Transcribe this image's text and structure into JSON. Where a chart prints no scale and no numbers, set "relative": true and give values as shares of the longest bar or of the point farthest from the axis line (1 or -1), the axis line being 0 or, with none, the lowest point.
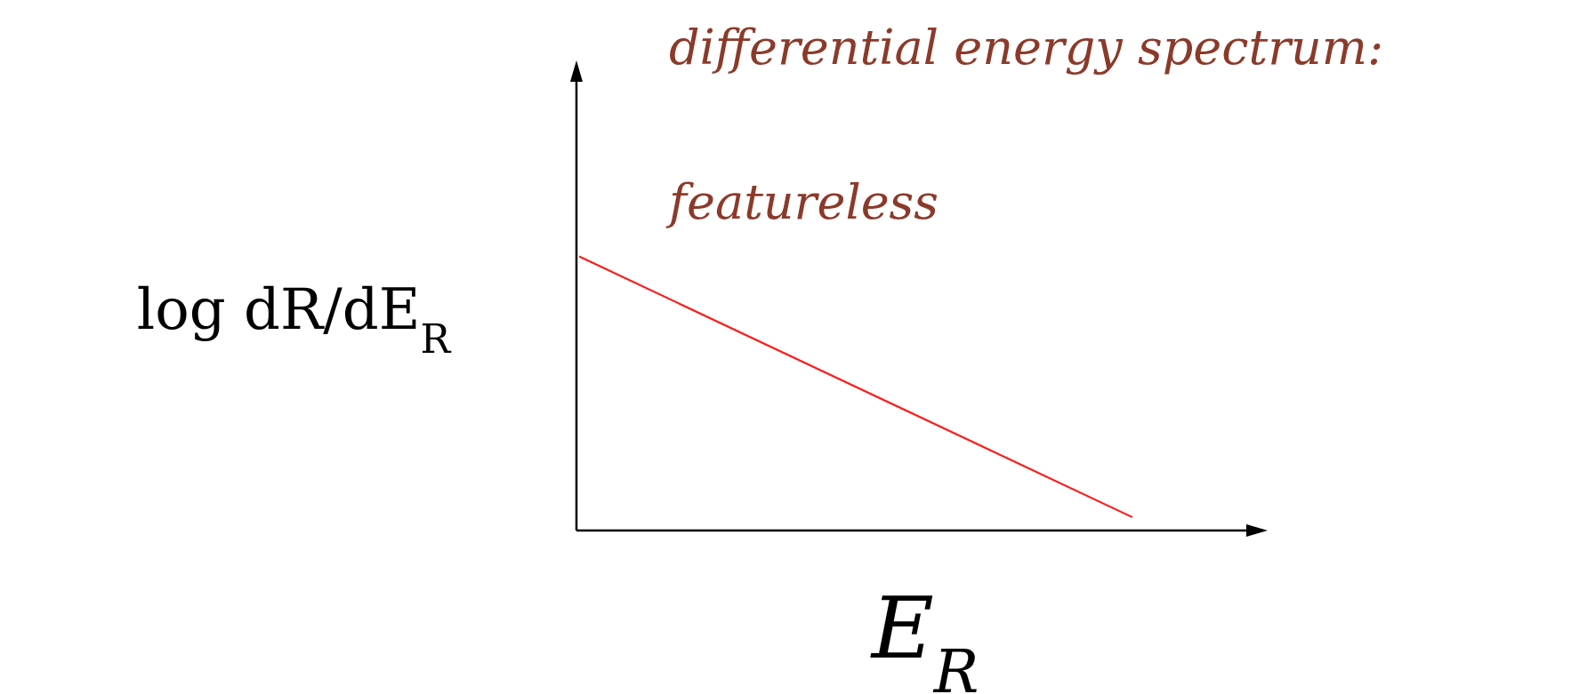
{
  "chart_data": {
    "type": "line",
    "relative": true,
    "title": "differential energy spectrum:",
    "subtitle": "featureless",
    "xlabel": "E$_{R}$",
    "ylabel": "log dR/dE$_{R}$",
    "categories": [
      null,
      null
    ],
    "series": [
      {
        "color": "#ff1a1a",
        "values": [
          1,
          0.05
        ]
      }
    ]
  }
}
